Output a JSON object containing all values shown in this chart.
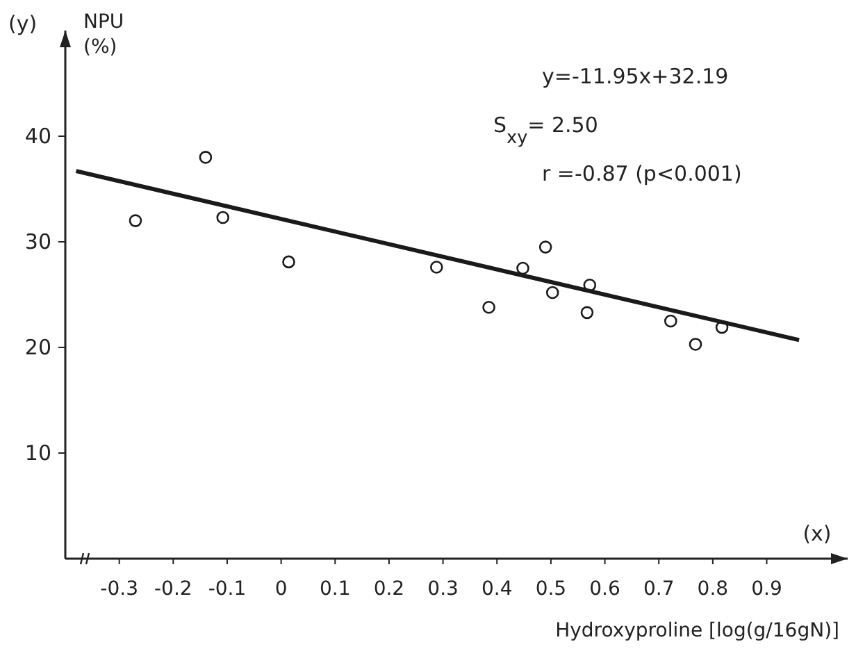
{
  "chart_data": {
    "type": "scatter",
    "xlabel": "Hydroxyproline [log(g/16gN)]",
    "ylabel": "NPU (%)",
    "xlim": [
      -0.4,
      1.05
    ],
    "ylim": [
      0,
      50
    ],
    "xticks": [
      -0.3,
      -0.2,
      -0.1,
      0,
      0.1,
      0.2,
      0.3,
      0.4,
      0.5,
      0.6,
      0.7,
      0.8,
      0.9
    ],
    "yticks": [
      10,
      20,
      30,
      40
    ],
    "grid": false,
    "marker": "circle",
    "series": [
      {
        "type": "scatter",
        "color": "#1a1a1a",
        "x": [
          -0.27,
          -0.14,
          -0.108,
          0.014,
          0.288,
          0.385,
          0.448,
          0.49,
          0.503,
          0.572,
          0.567,
          0.722,
          0.817,
          0.768
        ],
        "values": [
          32.0,
          38.0,
          32.3,
          28.1,
          27.6,
          23.8,
          27.5,
          29.5,
          25.2,
          25.9,
          23.3,
          22.5,
          21.9,
          20.3
        ]
      },
      {
        "type": "line",
        "color": "#1a1a1a",
        "line_style": "solid",
        "marker": "none",
        "x": [
          -0.38,
          0.96
        ],
        "values": [
          36.7,
          20.7
        ]
      }
    ],
    "annotations": [
      "(y)",
      "(x)",
      "y=-11.95x+32.19",
      "S$_{xy}$= 2.50",
      "r =-0.87 (p<0.001)"
    ]
  }
}
